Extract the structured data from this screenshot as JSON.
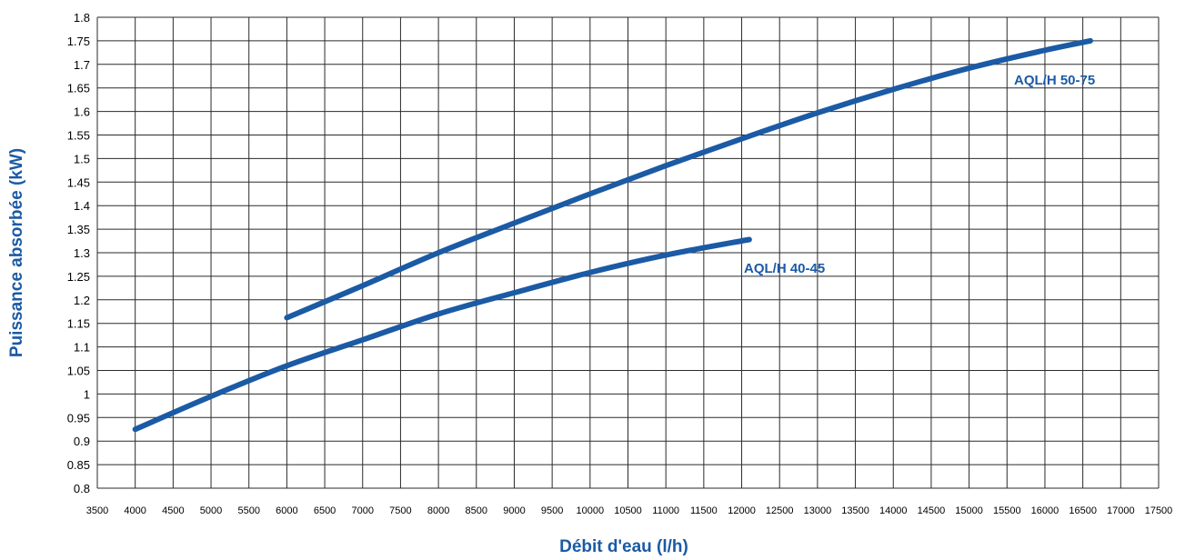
{
  "chart_data": {
    "type": "line",
    "title": "",
    "xlabel": "Débit d'eau (l/h)",
    "ylabel": "Puissance absorbée (kW)",
    "xlim": [
      3500,
      17500
    ],
    "ylim": [
      0.8,
      1.8
    ],
    "x_ticks": [
      3500,
      4000,
      4500,
      5000,
      5500,
      6000,
      6500,
      7000,
      7500,
      8000,
      8500,
      9000,
      9500,
      10000,
      10500,
      11000,
      11500,
      12000,
      12500,
      13000,
      13500,
      14000,
      14500,
      15000,
      15500,
      16000,
      16500,
      17000,
      17500
    ],
    "y_ticks": [
      "0.8",
      "0.85",
      "0.9",
      "0.95",
      "1",
      "1.05",
      "1.1",
      "1.15",
      "1.2",
      "1.25",
      "1.3",
      "1.35",
      "1.4",
      "1.45",
      "1.5",
      "1.55",
      "1.6",
      "1.65",
      "1.7",
      "1.75",
      "1.8"
    ],
    "grid": true,
    "line_color": "#1b5aa5",
    "series": [
      {
        "name": "AQL/H 40-45",
        "x": [
          4000,
          5000,
          6000,
          7000,
          8000,
          9000,
          10000,
          11000,
          12100
        ],
        "y": [
          0.925,
          0.995,
          1.06,
          1.115,
          1.17,
          1.215,
          1.258,
          1.295,
          1.328
        ]
      },
      {
        "name": "AQL/H 50-75",
        "x": [
          6000,
          7000,
          8000,
          9000,
          10000,
          11000,
          12000,
          13000,
          14000,
          15000,
          16000,
          16600
        ],
        "y": [
          1.162,
          1.23,
          1.3,
          1.363,
          1.425,
          1.485,
          1.542,
          1.597,
          1.647,
          1.692,
          1.73,
          1.75
        ]
      }
    ]
  }
}
